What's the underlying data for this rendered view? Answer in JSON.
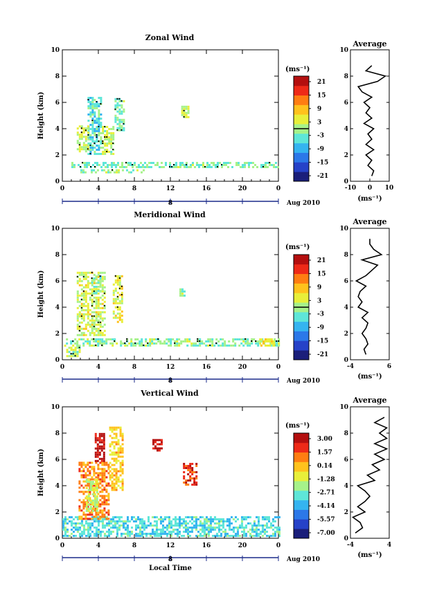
{
  "figure": {
    "date_label": "Aug 2010",
    "day_label": "8",
    "bottom_xlabel": "Local Time",
    "avg_title": "Average",
    "avg_unit": "(ms⁻¹)",
    "cbar_unit": "(ms⁻¹)",
    "ylabel": "Height (km)",
    "colors": {
      "scale": [
        "#1b1f7a",
        "#2642c8",
        "#2c78e8",
        "#35b4f0",
        "#5ee6d8",
        "#a6f28a",
        "#e8ef3a",
        "#ffc21d",
        "#ff7d12",
        "#ee2a18",
        "#b40f0f"
      ]
    }
  },
  "chart_data": [
    {
      "type": "heatmap",
      "title": "Zonal Wind",
      "xlabel": "",
      "ylabel": "Height (km)",
      "x_ticks": [
        "0",
        "4",
        "8",
        "12",
        "16",
        "20",
        "0"
      ],
      "xlim": [
        0,
        24
      ],
      "y_ticks": [
        "0",
        "2",
        "4",
        "6",
        "8",
        "10"
      ],
      "ylim": [
        0,
        10
      ],
      "colorbar": {
        "ticks": [
          "21",
          "15",
          "9",
          "3",
          "-3",
          "-9",
          "-15",
          "-21"
        ],
        "range": [
          -24,
          24
        ],
        "zero_line": true
      },
      "grid": false,
      "regions": [
        {
          "t": [
            2.8,
            4.4
          ],
          "h": [
            2.0,
            6.4
          ],
          "v": -4
        },
        {
          "t": [
            1.6,
            2.8
          ],
          "h": [
            2.2,
            4.2
          ],
          "v": 2
        },
        {
          "t": [
            4.4,
            5.6
          ],
          "h": [
            2.0,
            4.2
          ],
          "v": 1
        },
        {
          "t": [
            5.8,
            6.8
          ],
          "h": [
            3.8,
            6.2
          ],
          "v": -2
        },
        {
          "t": [
            1.0,
            24.0
          ],
          "h": [
            1.0,
            1.4
          ],
          "v": -2
        },
        {
          "t": [
            2.0,
            9.0
          ],
          "h": [
            0.6,
            0.9
          ],
          "v": -1
        },
        {
          "t": [
            13.2,
            14.0
          ],
          "h": [
            4.8,
            5.6
          ],
          "v": 2
        }
      ],
      "average": {
        "xlim": [
          -10,
          10
        ],
        "x_ticks": [
          "-10",
          "0",
          "10"
        ],
        "heights": [
          0.4,
          0.8,
          1.2,
          1.6,
          2.0,
          2.4,
          2.8,
          3.2,
          3.6,
          4.0,
          4.4,
          4.8,
          5.2,
          5.6,
          6.0,
          6.4,
          6.8,
          7.2,
          7.6,
          8.0,
          8.4,
          8.8
        ],
        "values": [
          1,
          2,
          -1,
          1,
          -2,
          2,
          -2,
          1,
          -1,
          2,
          -3,
          1,
          -2,
          0,
          -3,
          1,
          -4,
          -6,
          4,
          8,
          -2,
          1
        ]
      }
    },
    {
      "type": "heatmap",
      "title": "Meridional Wind",
      "xlabel": "",
      "ylabel": "Height (km)",
      "x_ticks": [
        "0",
        "4",
        "8",
        "12",
        "16",
        "20",
        "0"
      ],
      "xlim": [
        0,
        24
      ],
      "y_ticks": [
        "0",
        "2",
        "4",
        "6",
        "8",
        "10"
      ],
      "ylim": [
        0,
        10
      ],
      "colorbar": {
        "ticks": [
          "21",
          "15",
          "9",
          "3",
          "-3",
          "-9",
          "-15",
          "-21"
        ],
        "range": [
          -24,
          24
        ],
        "zero_line": true
      },
      "grid": false,
      "regions": [
        {
          "t": [
            1.6,
            4.8
          ],
          "h": [
            1.8,
            6.6
          ],
          "v": 3
        },
        {
          "t": [
            3.2,
            4.2
          ],
          "h": [
            5.0,
            6.4
          ],
          "v": -3
        },
        {
          "t": [
            5.6,
            6.6
          ],
          "h": [
            2.8,
            6.4
          ],
          "v": 4
        },
        {
          "t": [
            0.4,
            24.0
          ],
          "h": [
            1.0,
            1.5
          ],
          "v": -1
        },
        {
          "t": [
            0.2,
            2.0
          ],
          "h": [
            0.2,
            1.1
          ],
          "v": 1
        },
        {
          "t": [
            13.0,
            13.6
          ],
          "h": [
            4.8,
            5.4
          ],
          "v": -1
        },
        {
          "t": [
            22.0,
            23.4
          ],
          "h": [
            1.0,
            1.6
          ],
          "v": 4
        }
      ],
      "average": {
        "xlim": [
          -4,
          6
        ],
        "x_ticks": [
          "-4",
          "6"
        ],
        "heights": [
          0.4,
          0.8,
          1.2,
          1.6,
          2.0,
          2.4,
          2.8,
          3.2,
          3.6,
          4.0,
          4.4,
          4.8,
          5.2,
          5.6,
          6.0,
          6.4,
          6.8,
          7.2,
          7.6,
          8.0,
          8.4,
          8.8,
          9.2
        ],
        "values": [
          0,
          -0.5,
          0.5,
          0,
          -1,
          0,
          0.5,
          -1,
          0.5,
          -2,
          -1,
          -2,
          -1.5,
          0,
          -2.5,
          0,
          1.5,
          3,
          -1,
          4,
          2,
          1,
          1
        ]
      }
    },
    {
      "type": "heatmap",
      "title": "Vertical Wind",
      "xlabel": "Local Time",
      "ylabel": "Height (km)",
      "x_ticks": [
        "0",
        "4",
        "8",
        "12",
        "16",
        "20",
        "0"
      ],
      "xlim": [
        0,
        24
      ],
      "y_ticks": [
        "0",
        "2",
        "4",
        "6",
        "8",
        "10"
      ],
      "ylim": [
        0,
        10
      ],
      "colorbar": {
        "ticks": [
          "3.00",
          "1.57",
          "0.14",
          "-1.28",
          "-2.71",
          "-4.14",
          "-5.57",
          "-7.00"
        ],
        "range": [
          -7.7,
          3.7
        ],
        "zero_line": false
      },
      "grid": false,
      "regions": [
        {
          "t": [
            0.0,
            24.0
          ],
          "h": [
            0.1,
            1.6
          ],
          "v": -3.2
        },
        {
          "t": [
            1.8,
            5.2
          ],
          "h": [
            1.4,
            5.8
          ],
          "v": 1.0
        },
        {
          "t": [
            2.6,
            3.8
          ],
          "h": [
            2.0,
            4.4
          ],
          "v": -1.5
        },
        {
          "t": [
            3.6,
            4.6
          ],
          "h": [
            5.8,
            8.0
          ],
          "v": 3.2
        },
        {
          "t": [
            5.2,
            6.8
          ],
          "h": [
            3.6,
            8.4
          ],
          "v": -0.3
        },
        {
          "t": [
            13.4,
            14.8
          ],
          "h": [
            4.0,
            5.6
          ],
          "v": 2.0
        },
        {
          "t": [
            10.0,
            11.0
          ],
          "h": [
            6.6,
            7.4
          ],
          "v": 3.0
        }
      ],
      "average": {
        "xlim": [
          -4,
          4
        ],
        "x_ticks": [
          "-4",
          "4"
        ],
        "heights": [
          0.4,
          0.8,
          1.2,
          1.6,
          2.0,
          2.4,
          2.8,
          3.2,
          3.6,
          4.0,
          4.4,
          4.8,
          5.2,
          5.6,
          6.0,
          6.4,
          6.8,
          7.2,
          7.6,
          8.0,
          8.4,
          8.8,
          9.2
        ],
        "values": [
          -3,
          -1.5,
          -2,
          -3.5,
          -1,
          -2.5,
          -1,
          0,
          -1,
          -2.5,
          1,
          -0.5,
          2,
          0.5,
          3,
          1,
          3.5,
          1,
          3.5,
          2,
          3.5,
          1,
          3
        ]
      }
    }
  ]
}
